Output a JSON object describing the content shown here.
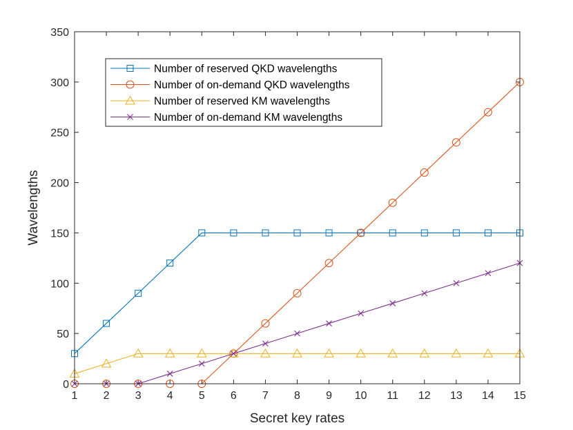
{
  "chart_data": {
    "type": "line",
    "title": "",
    "xlabel": "Secret key rates",
    "ylabel": "Wavelengths",
    "x": [
      1,
      2,
      3,
      4,
      5,
      6,
      7,
      8,
      9,
      10,
      11,
      12,
      13,
      14,
      15
    ],
    "xlim": [
      1,
      15
    ],
    "ylim": [
      0,
      350
    ],
    "xticks": [
      1,
      2,
      3,
      4,
      5,
      6,
      7,
      8,
      9,
      10,
      11,
      12,
      13,
      14,
      15
    ],
    "yticks": [
      0,
      50,
      100,
      150,
      200,
      250,
      300,
      350
    ],
    "grid": false,
    "legend_position": "top-left",
    "series": [
      {
        "name": "Number of reserved QKD wavelengths",
        "color": "#0072BD",
        "marker": "square",
        "values": [
          30,
          60,
          90,
          120,
          150,
          150,
          150,
          150,
          150,
          150,
          150,
          150,
          150,
          150,
          150
        ]
      },
      {
        "name": "Number of on-demand QKD wavelengths",
        "color": "#D95319",
        "marker": "circle",
        "values": [
          0,
          0,
          0,
          0,
          0,
          30,
          60,
          90,
          120,
          150,
          180,
          210,
          240,
          270,
          300
        ]
      },
      {
        "name": "Number of reserved KM wavelengths",
        "color": "#EDB120",
        "marker": "triangle",
        "values": [
          10,
          20,
          30,
          30,
          30,
          30,
          30,
          30,
          30,
          30,
          30,
          30,
          30,
          30,
          30
        ]
      },
      {
        "name": "Number of on-demand KM wavelengths",
        "color": "#7E2F8E",
        "marker": "x",
        "values": [
          0,
          0,
          0,
          10,
          20,
          30,
          40,
          50,
          60,
          70,
          80,
          90,
          100,
          110,
          120
        ]
      }
    ]
  }
}
